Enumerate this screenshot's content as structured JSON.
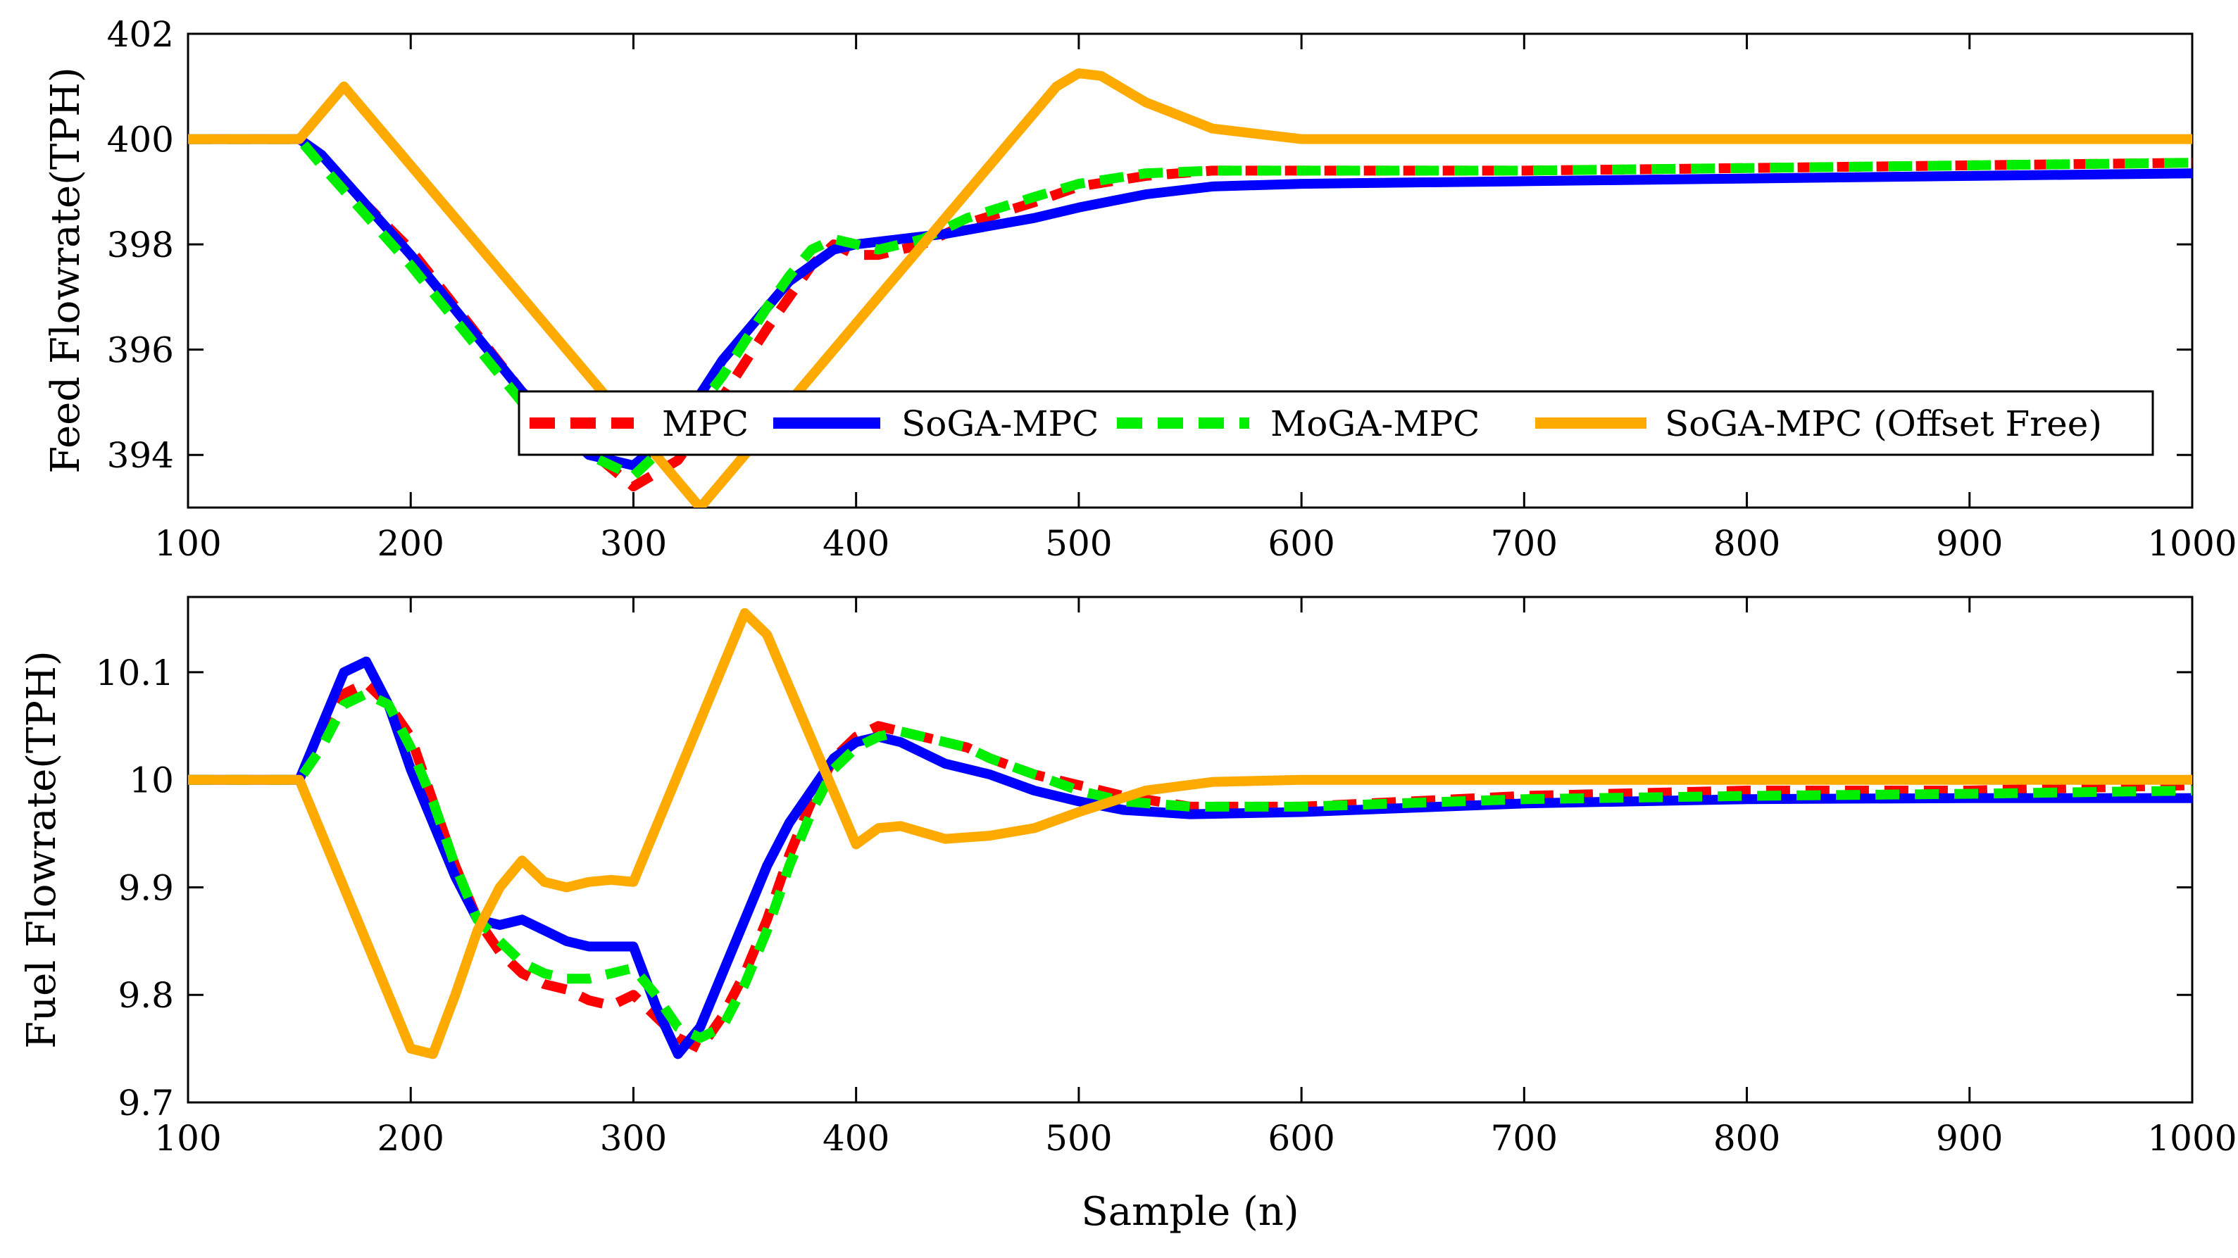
{
  "chart_data": [
    {
      "id": "top",
      "type": "line",
      "title": "",
      "xlabel": "",
      "ylabel": "Feed Flowrate(TPH)",
      "xlim": [
        100,
        1000
      ],
      "ylim": [
        393,
        402
      ],
      "xticks": [
        100,
        200,
        300,
        400,
        500,
        600,
        700,
        800,
        900,
        1000
      ],
      "yticks": [
        394,
        396,
        398,
        400,
        402
      ],
      "xtick_labels": [
        "100",
        "200",
        "300",
        "400",
        "500",
        "600",
        "700",
        "800",
        "900",
        "1000"
      ],
      "ytick_labels": [
        "394",
        "396",
        "398",
        "400",
        "402"
      ],
      "legend": {
        "position": "bottom-center",
        "entries": [
          "MPC",
          "SoGA-MPC",
          "MoGA-MPC",
          "SoGA-MPC (Offset Free)"
        ]
      },
      "series": [
        {
          "name": "MPC",
          "color": "#ff0000",
          "style": "dashed",
          "x": [
            100,
            150,
            160,
            200,
            250,
            280,
            300,
            320,
            340,
            360,
            380,
            390,
            400,
            410,
            430,
            450,
            480,
            500,
            530,
            560,
            600,
            700,
            800,
            900,
            1000
          ],
          "y": [
            400,
            400,
            399.6,
            397.9,
            395.2,
            394.1,
            393.4,
            393.9,
            395.1,
            396.4,
            397.6,
            398.0,
            397.8,
            397.8,
            398.0,
            398.4,
            398.8,
            399.1,
            399.3,
            399.4,
            399.4,
            399.4,
            399.45,
            399.5,
            399.55
          ]
        },
        {
          "name": "SoGA-MPC",
          "color": "#0000ff",
          "style": "solid",
          "x": [
            100,
            150,
            160,
            200,
            250,
            280,
            300,
            320,
            340,
            360,
            370,
            380,
            390,
            400,
            420,
            440,
            460,
            480,
            500,
            530,
            560,
            600,
            700,
            800,
            900,
            1000
          ],
          "y": [
            400,
            400,
            399.7,
            397.8,
            395.2,
            394.0,
            393.8,
            394.5,
            395.8,
            396.8,
            397.3,
            397.6,
            397.9,
            398.0,
            398.1,
            398.2,
            398.35,
            398.5,
            398.7,
            398.95,
            399.1,
            399.15,
            399.2,
            399.25,
            399.3,
            399.35
          ]
        },
        {
          "name": "MoGA-MPC",
          "color": "#00ee00",
          "style": "dashed",
          "x": [
            100,
            150,
            160,
            200,
            250,
            280,
            300,
            320,
            340,
            360,
            370,
            380,
            390,
            400,
            410,
            430,
            450,
            480,
            500,
            530,
            560,
            600,
            700,
            800,
            900,
            1000
          ],
          "y": [
            400,
            400,
            399.5,
            397.6,
            395.0,
            394.0,
            393.6,
            394.4,
            395.5,
            396.8,
            397.4,
            397.9,
            398.1,
            398.0,
            397.9,
            398.1,
            398.5,
            398.9,
            399.15,
            399.35,
            399.4,
            399.4,
            399.4,
            399.45,
            399.5,
            399.55
          ]
        },
        {
          "name": "SoGA-MPC (Offset Free)",
          "color": "#ffaa00",
          "style": "solid",
          "x": [
            100,
            150,
            170,
            330,
            490,
            500,
            510,
            530,
            560,
            600,
            650,
            700,
            800,
            900,
            1000
          ],
          "y": [
            400,
            400,
            401,
            393.0,
            401.0,
            401.25,
            401.2,
            400.7,
            400.2,
            400.0,
            400.0,
            400.0,
            400.0,
            400.0,
            400.0
          ]
        }
      ]
    },
    {
      "id": "bottom",
      "type": "line",
      "title": "",
      "xlabel": "Sample (n)",
      "ylabel": "Fuel Flowrate(TPH)",
      "xlim": [
        100,
        1000
      ],
      "ylim": [
        9.7,
        10.17
      ],
      "xticks": [
        100,
        200,
        300,
        400,
        500,
        600,
        700,
        800,
        900,
        1000
      ],
      "yticks": [
        9.7,
        9.8,
        9.9,
        10,
        10.1
      ],
      "xtick_labels": [
        "100",
        "200",
        "300",
        "400",
        "500",
        "600",
        "700",
        "800",
        "900",
        "1000"
      ],
      "ytick_labels": [
        "9.7",
        "9.8",
        "9.9",
        "10",
        "10.1"
      ],
      "series": [
        {
          "name": "MPC",
          "color": "#ff0000",
          "style": "dashed",
          "x": [
            100,
            150,
            160,
            170,
            180,
            190,
            200,
            210,
            220,
            230,
            240,
            250,
            260,
            270,
            280,
            290,
            300,
            310,
            320,
            330,
            340,
            350,
            360,
            370,
            380,
            390,
            400,
            410,
            420,
            430,
            440,
            450,
            460,
            480,
            500,
            520,
            550,
            600,
            700,
            800,
            900,
            1000
          ],
          "y": [
            10,
            10,
            10.04,
            10.08,
            10.09,
            10.07,
            10.04,
            9.98,
            9.92,
            9.87,
            9.84,
            9.82,
            9.81,
            9.805,
            9.795,
            9.79,
            9.8,
            9.78,
            9.76,
            9.75,
            9.78,
            9.82,
            9.87,
            9.93,
            9.98,
            10.02,
            10.04,
            10.05,
            10.045,
            10.04,
            10.035,
            10.03,
            10.02,
            10.005,
            9.995,
            9.985,
            9.975,
            9.975,
            9.985,
            9.99,
            9.99,
            9.995
          ]
        },
        {
          "name": "SoGA-MPC",
          "color": "#0000ff",
          "style": "solid",
          "x": [
            100,
            150,
            160,
            170,
            180,
            190,
            200,
            210,
            220,
            230,
            240,
            250,
            260,
            270,
            280,
            290,
            300,
            310,
            320,
            330,
            340,
            350,
            360,
            370,
            380,
            390,
            400,
            410,
            420,
            430,
            440,
            450,
            460,
            480,
            500,
            520,
            550,
            600,
            700,
            800,
            900,
            1000
          ],
          "y": [
            10,
            10,
            10.05,
            10.1,
            10.11,
            10.07,
            10.01,
            9.96,
            9.91,
            9.87,
            9.865,
            9.87,
            9.86,
            9.85,
            9.845,
            9.845,
            9.845,
            9.79,
            9.745,
            9.77,
            9.82,
            9.87,
            9.92,
            9.96,
            9.99,
            10.02,
            10.035,
            10.04,
            10.035,
            10.025,
            10.015,
            10.01,
            10.005,
            9.99,
            9.98,
            9.972,
            9.968,
            9.97,
            9.978,
            9.982,
            9.983,
            9.983
          ]
        },
        {
          "name": "MoGA-MPC",
          "color": "#00ee00",
          "style": "dashed",
          "x": [
            100,
            150,
            160,
            170,
            180,
            190,
            200,
            210,
            220,
            230,
            240,
            250,
            260,
            270,
            280,
            290,
            300,
            310,
            320,
            330,
            340,
            350,
            360,
            370,
            380,
            390,
            400,
            410,
            420,
            430,
            440,
            450,
            460,
            480,
            500,
            520,
            550,
            600,
            700,
            800,
            900,
            1000
          ],
          "y": [
            10,
            10,
            10.03,
            10.07,
            10.08,
            10.07,
            10.03,
            9.98,
            9.92,
            9.87,
            9.85,
            9.83,
            9.82,
            9.815,
            9.815,
            9.82,
            9.825,
            9.8,
            9.77,
            9.76,
            9.77,
            9.81,
            9.86,
            9.92,
            9.97,
            10.01,
            10.03,
            10.04,
            10.045,
            10.04,
            10.035,
            10.03,
            10.02,
            10.005,
            9.99,
            9.98,
            9.975,
            9.975,
            9.982,
            9.985,
            9.987,
            9.99
          ]
        },
        {
          "name": "SoGA-MPC (Offset Free)",
          "color": "#ffaa00",
          "style": "solid",
          "x": [
            100,
            150,
            200,
            210,
            220,
            230,
            240,
            250,
            260,
            270,
            280,
            290,
            300,
            350,
            360,
            400,
            410,
            420,
            440,
            460,
            480,
            500,
            530,
            560,
            600,
            700,
            800,
            900,
            1000
          ],
          "y": [
            10,
            10,
            9.75,
            9.745,
            9.8,
            9.86,
            9.9,
            9.925,
            9.905,
            9.9,
            9.905,
            9.907,
            9.905,
            10.155,
            10.135,
            9.94,
            9.955,
            9.957,
            9.945,
            9.948,
            9.955,
            9.97,
            9.99,
            9.998,
            10.0,
            10.0,
            10.0,
            10.0,
            10.0
          ]
        }
      ]
    }
  ]
}
